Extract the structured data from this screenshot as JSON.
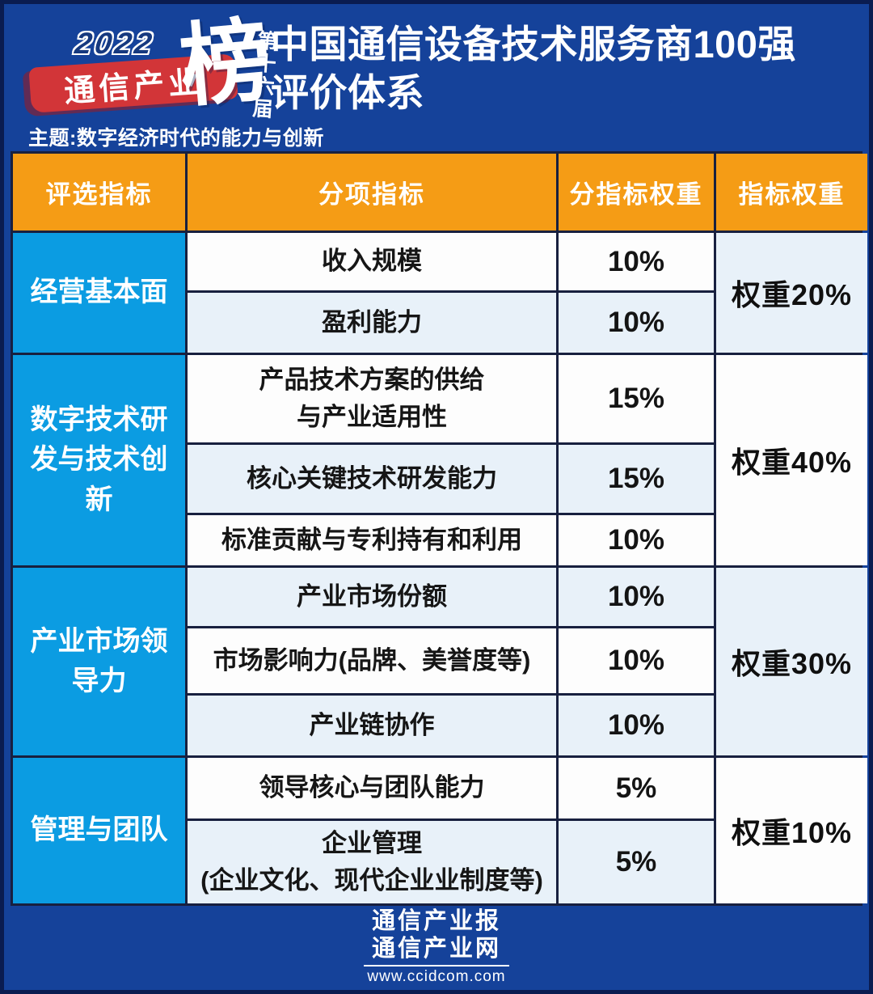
{
  "logo": {
    "year": "2022",
    "brand": "通信产业",
    "rank_char": "榜",
    "edition": "第十六届",
    "slogan": "主题:数字经济时代的能力与创新"
  },
  "title": {
    "line1": "中国通信设备技术服务商100强",
    "line2": "评价体系"
  },
  "table": {
    "headers": [
      "评选指标",
      "分项指标",
      "分指标权重",
      "指标权重"
    ],
    "groups": [
      {
        "category": "经营基本面",
        "weight": "权重20%",
        "rows": [
          {
            "name": "收入规模",
            "weight": "10%"
          },
          {
            "name": "盈利能力",
            "weight": "10%"
          }
        ]
      },
      {
        "category": "数字技术研发与技术创新",
        "weight": "权重40%",
        "rows": [
          {
            "name": "产品技术方案的供给\n与产业适用性",
            "weight": "15%"
          },
          {
            "name": "核心关键技术研发能力",
            "weight": "15%"
          },
          {
            "name": "标准贡献与专利持有和利用",
            "weight": "10%"
          }
        ]
      },
      {
        "category": "产业市场领导力",
        "weight": "权重30%",
        "rows": [
          {
            "name": "产业市场份额",
            "weight": "10%"
          },
          {
            "name": "市场影响力(品牌、美誉度等)",
            "weight": "10%"
          },
          {
            "name": "产业链协作",
            "weight": "10%"
          }
        ]
      },
      {
        "category": "管理与团队",
        "weight": "权重10%",
        "rows": [
          {
            "name": "领导核心与团队能力",
            "weight": "5%"
          },
          {
            "name": "企业管理\n(企业文化、现代企业业制度等)",
            "weight": "5%"
          }
        ]
      }
    ]
  },
  "footer": {
    "line1": "通信产业报",
    "line2": "通信产业网",
    "url": "www.ccidcom.com"
  },
  "colors": {
    "background_blue": "#15429a",
    "frame_navy": "#0a1c50",
    "header_orange": "#f59c15",
    "category_cyan": "#0b9ce2",
    "row_white": "#fdfdfd",
    "row_light_blue": "#e8f1f9",
    "grid_line": "#18203f",
    "logo_red": "#d23538"
  },
  "chart_data": {
    "type": "table",
    "title": "中国通信设备技术服务商100强评价体系",
    "columns": [
      "评选指标",
      "分项指标",
      "分指标权重",
      "指标权重"
    ],
    "rows": [
      [
        "经营基本面",
        "收入规模",
        "10%",
        "权重20%"
      ],
      [
        "经营基本面",
        "盈利能力",
        "10%",
        "权重20%"
      ],
      [
        "数字技术研发与技术创新",
        "产品技术方案的供给与产业适用性",
        "15%",
        "权重40%"
      ],
      [
        "数字技术研发与技术创新",
        "核心关键技术研发能力",
        "15%",
        "权重40%"
      ],
      [
        "数字技术研发与技术创新",
        "标准贡献与专利持有和利用",
        "10%",
        "权重40%"
      ],
      [
        "产业市场领导力",
        "产业市场份额",
        "10%",
        "权重30%"
      ],
      [
        "产业市场领导力",
        "市场影响力(品牌、美誉度等)",
        "10%",
        "权重30%"
      ],
      [
        "产业市场领导力",
        "产业链协作",
        "10%",
        "权重30%"
      ],
      [
        "管理与团队",
        "领导核心与团队能力",
        "5%",
        "权重10%"
      ],
      [
        "管理与团队",
        "企业管理(企业文化、现代企业业制度等)",
        "5%",
        "权重10%"
      ]
    ]
  }
}
